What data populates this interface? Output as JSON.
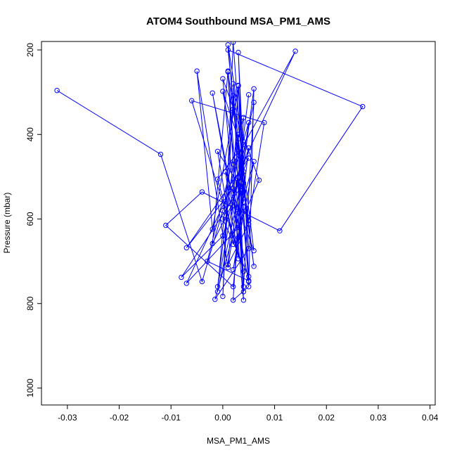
{
  "chart_data": {
    "type": "line",
    "title": "ATOM4 Southbound MSA_PM1_AMS",
    "xlabel": "MSA_PM1_AMS",
    "ylabel": "Pressure (mbar)",
    "xlim": [
      -0.035,
      0.041
    ],
    "ylim": [
      1040,
      180
    ],
    "y_inverted": true,
    "xticks": [
      -0.03,
      -0.02,
      -0.01,
      0.0,
      0.01,
      0.02,
      0.03,
      0.04
    ],
    "xtick_labels": [
      "-0.03",
      "-0.02",
      "-0.01",
      "0.00",
      "0.01",
      "0.02",
      "0.03",
      "0.04"
    ],
    "yticks": [
      200,
      400,
      600,
      800,
      1000
    ],
    "ytick_labels": [
      "200",
      "400",
      "600",
      "800",
      "1000"
    ],
    "grid": false,
    "series": [
      {
        "color": "#0000ff",
        "marker": "open-circle",
        "points": [
          [
            -0.032,
            296
          ],
          [
            -0.012,
            447
          ],
          [
            -0.004,
            748
          ],
          [
            0.0,
            580
          ],
          [
            0.005,
            372
          ],
          [
            0.001,
            715
          ],
          [
            -0.005,
            250
          ],
          [
            -0.002,
            624
          ],
          [
            0.003,
            285
          ],
          [
            0.004,
            560
          ],
          [
            0.001,
            200
          ],
          [
            0.027,
            334
          ],
          [
            0.011,
            628
          ],
          [
            -0.004,
            536
          ],
          [
            -0.011,
            615
          ],
          [
            0.002,
            760
          ],
          [
            0.005,
            432
          ],
          [
            0.0,
            640
          ],
          [
            -0.008,
            738
          ],
          [
            0.004,
            515
          ],
          [
            0.002,
            182
          ],
          [
            0.0,
            783
          ],
          [
            0.002,
            308
          ],
          [
            0.006,
            712
          ],
          [
            0.003,
            440
          ],
          [
            -0.001,
            506
          ],
          [
            0.004,
            724
          ],
          [
            -0.006,
            320
          ],
          [
            0.008,
            372
          ],
          [
            0.005,
            604
          ],
          [
            0.001,
            252
          ],
          [
            0.003,
            694
          ],
          [
            0.0005,
            488
          ],
          [
            0.006,
            675
          ],
          [
            0.002,
            280
          ],
          [
            0.004,
            792
          ],
          [
            0.0,
            268
          ],
          [
            0.007,
            508
          ],
          [
            0.003,
            620
          ],
          [
            -0.007,
            752
          ],
          [
            0.014,
            203
          ],
          [
            0.002,
            470
          ],
          [
            -0.001,
            760
          ],
          [
            0.004,
            424
          ],
          [
            0.001,
            188
          ],
          [
            0.005,
            746
          ],
          [
            -0.003,
            700
          ],
          [
            0.004,
            360
          ],
          [
            0.003,
            586
          ],
          [
            0.002,
            792
          ],
          [
            0.005,
            760
          ],
          [
            0.006,
            292
          ],
          [
            0.002,
            660
          ],
          [
            -0.001,
            440
          ],
          [
            0.004,
            536
          ],
          [
            0.003,
            206
          ],
          [
            0.005,
            736
          ],
          [
            0.0,
            600
          ],
          [
            0.005,
            456
          ],
          [
            -0.007,
            668
          ],
          [
            0.002,
            528
          ],
          [
            0.003,
            284
          ],
          [
            0.005,
            670
          ],
          [
            -0.0015,
            790
          ],
          [
            0.006,
            464
          ],
          [
            0.002,
            720
          ],
          [
            0.004,
            572
          ],
          [
            0.0,
            298
          ],
          [
            0.003,
            410
          ],
          [
            0.005,
            748
          ],
          [
            -0.002,
            302
          ],
          [
            0.003,
            644
          ],
          [
            0.004,
            488
          ],
          [
            -0.001,
            772
          ],
          [
            0.002,
            340
          ],
          [
            0.005,
            612
          ],
          [
            0.001,
            708
          ],
          [
            0.003,
            400
          ],
          [
            0.004,
            760
          ],
          [
            0.006,
            324
          ],
          [
            0.002,
            560
          ],
          [
            -0.002,
            658
          ],
          [
            0.001,
            250
          ],
          [
            0.004,
            772
          ],
          [
            0.003,
            500
          ],
          [
            0.005,
            306
          ]
        ]
      }
    ]
  }
}
